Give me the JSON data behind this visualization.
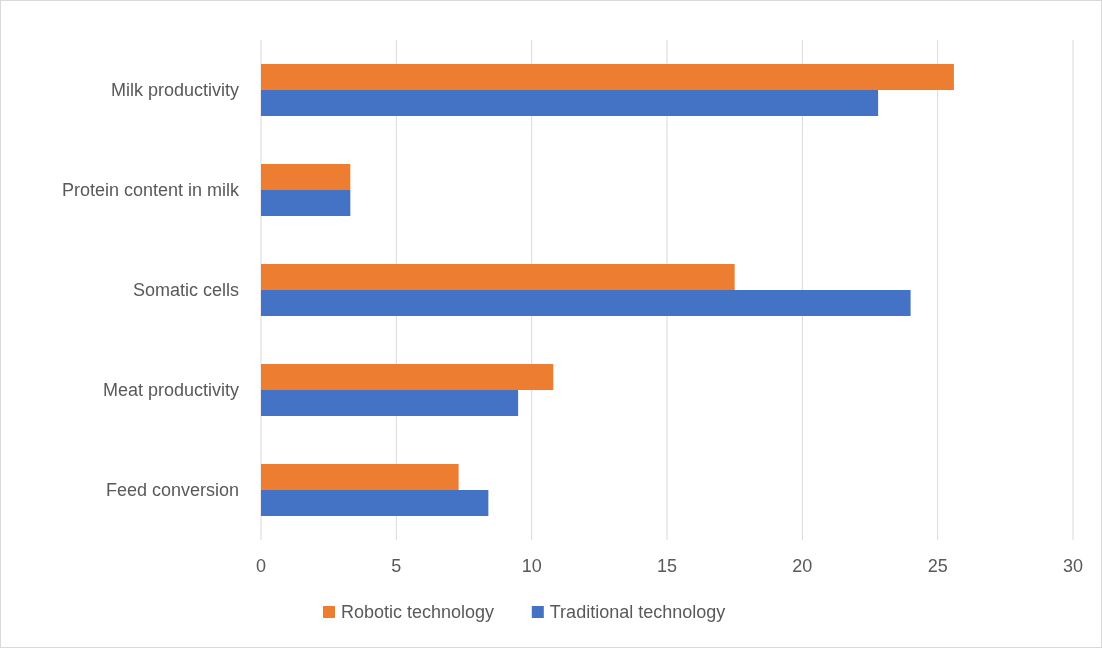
{
  "chart_data": {
    "type": "bar",
    "orientation": "horizontal",
    "categories": [
      "Milk productivity",
      "Protein content in milk",
      "Somatic cells ",
      "Meat productivity",
      "Feed conversion"
    ],
    "series": [
      {
        "name": "Robotic technology",
        "color": "#ed7d31",
        "values": [
          25.6,
          3.3,
          17.5,
          10.8,
          7.3
        ]
      },
      {
        "name": "Traditional technology",
        "color": "#4472c4",
        "values": [
          22.8,
          3.3,
          24.0,
          9.5,
          8.4
        ]
      }
    ],
    "xlim": [
      0,
      30
    ],
    "xticks": [
      0,
      5,
      10,
      15,
      20,
      25,
      30
    ],
    "grid": "x",
    "legend": "bottom"
  }
}
